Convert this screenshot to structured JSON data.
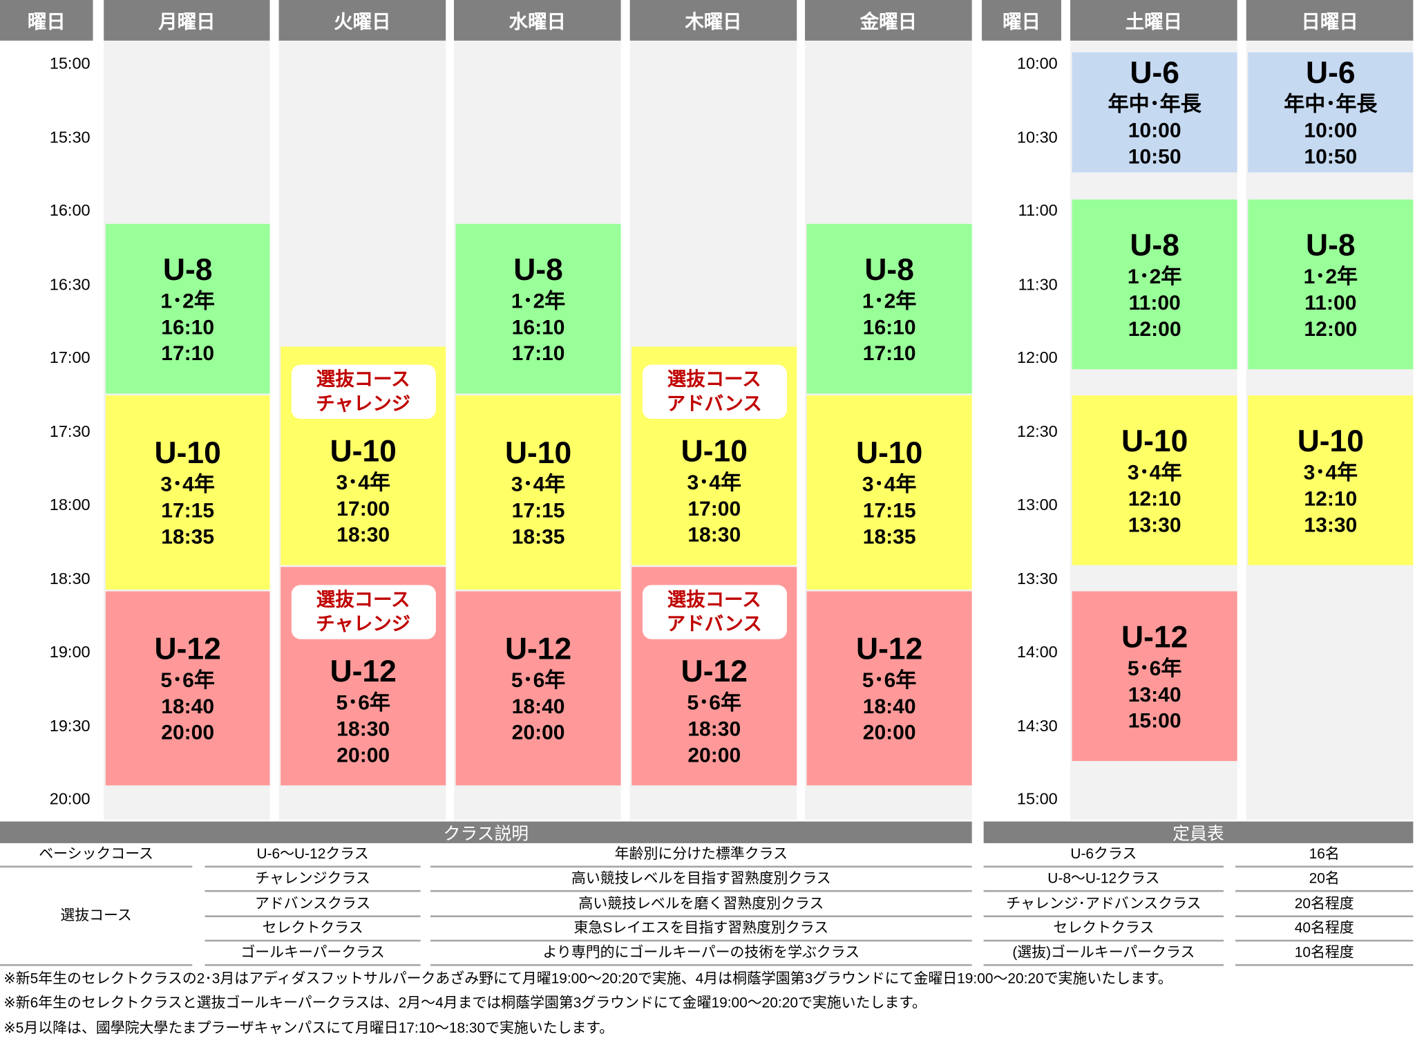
{
  "colors": {
    "header": "#808080",
    "column_bg": "#f2f2f2",
    "U-6": "#c5d9f1",
    "U-8": "#99ff99",
    "U-10": "#ffff66",
    "U-12": "#ff9999",
    "badge_text": "#c00000"
  },
  "headers": {
    "weekday_label": "曜日",
    "weekend_label": "曜日",
    "days": [
      "月曜日",
      "火曜日",
      "水曜日",
      "木曜日",
      "金曜日",
      "土曜日",
      "日曜日"
    ]
  },
  "weekday_times": [
    "15:00",
    "15:30",
    "16:00",
    "16:30",
    "17:00",
    "17:30",
    "18:00",
    "18:30",
    "19:00",
    "19:30",
    "20:00"
  ],
  "weekend_times": [
    "10:00",
    "10:30",
    "11:00",
    "11:30",
    "12:00",
    "12:30",
    "13:00",
    "13:30",
    "14:00",
    "14:30",
    "15:00"
  ],
  "schedule": [
    {
      "day": "月曜日",
      "blocks": [
        {
          "cls": "U-8",
          "grade": "1･2年",
          "start": "16:10",
          "end": "17:10"
        },
        {
          "cls": "U-10",
          "grade": "3･4年",
          "start": "17:15",
          "end": "18:35"
        },
        {
          "cls": "U-12",
          "grade": "5･6年",
          "start": "18:40",
          "end": "20:00"
        }
      ]
    },
    {
      "day": "火曜日",
      "blocks": [
        {
          "badge": [
            "選抜コース",
            "チャレンジ"
          ],
          "cls": "U-10",
          "grade": "3･4年",
          "start": "17:00",
          "end": "18:30"
        },
        {
          "badge": [
            "選抜コース",
            "チャレンジ"
          ],
          "cls": "U-12",
          "grade": "5･6年",
          "start": "18:30",
          "end": "20:00"
        }
      ]
    },
    {
      "day": "水曜日",
      "blocks": [
        {
          "cls": "U-8",
          "grade": "1･2年",
          "start": "16:10",
          "end": "17:10"
        },
        {
          "cls": "U-10",
          "grade": "3･4年",
          "start": "17:15",
          "end": "18:35"
        },
        {
          "cls": "U-12",
          "grade": "5･6年",
          "start": "18:40",
          "end": "20:00"
        }
      ]
    },
    {
      "day": "木曜日",
      "blocks": [
        {
          "badge": [
            "選抜コース",
            "アドバンス"
          ],
          "cls": "U-10",
          "grade": "3･4年",
          "start": "17:00",
          "end": "18:30"
        },
        {
          "badge": [
            "選抜コース",
            "アドバンス"
          ],
          "cls": "U-12",
          "grade": "5･6年",
          "start": "18:30",
          "end": "20:00"
        }
      ]
    },
    {
      "day": "金曜日",
      "blocks": [
        {
          "cls": "U-8",
          "grade": "1･2年",
          "start": "16:10",
          "end": "17:10"
        },
        {
          "cls": "U-10",
          "grade": "3･4年",
          "start": "17:15",
          "end": "18:35"
        },
        {
          "cls": "U-12",
          "grade": "5･6年",
          "start": "18:40",
          "end": "20:00"
        }
      ]
    },
    {
      "day": "土曜日",
      "blocks": [
        {
          "cls": "U-6",
          "grade": "年中･年長",
          "start": "10:00",
          "end": "10:50"
        },
        {
          "cls": "U-8",
          "grade": "1･2年",
          "start": "11:00",
          "end": "12:00"
        },
        {
          "cls": "U-10",
          "grade": "3･4年",
          "start": "12:10",
          "end": "13:30"
        },
        {
          "cls": "U-12",
          "grade": "5･6年",
          "start": "13:40",
          "end": "15:00"
        }
      ]
    },
    {
      "day": "日曜日",
      "blocks": [
        {
          "cls": "U-6",
          "grade": "年中･年長",
          "start": "10:00",
          "end": "10:50"
        },
        {
          "cls": "U-8",
          "grade": "1･2年",
          "start": "11:00",
          "end": "12:00"
        },
        {
          "cls": "U-10",
          "grade": "3･4年",
          "start": "12:10",
          "end": "13:30"
        }
      ]
    }
  ],
  "class_table": {
    "title": "クラス説明",
    "rows": [
      {
        "course": "ベーシックコース",
        "cls": "U-6～U-12クラス",
        "desc": "年齢別に分けた標準クラス"
      },
      {
        "course": "選抜コース",
        "cls": "チャレンジクラス",
        "desc": "高い競技レベルを目指す習熟度別クラス"
      },
      {
        "course": "",
        "cls": "アドバンスクラス",
        "desc": "高い競技レベルを磨く習熟度別クラス"
      },
      {
        "course": "",
        "cls": "セレクトクラス",
        "desc": "東急Sレイエスを目指す習熟度別クラス"
      },
      {
        "course": "",
        "cls": "ゴールキーパークラス",
        "desc": "より専門的にゴールキーパーの技術を学ぶクラス"
      }
    ]
  },
  "capacity_table": {
    "title": "定員表",
    "rows": [
      {
        "cls": "U-6クラス",
        "cap": "16名"
      },
      {
        "cls": "U-8～U-12クラス",
        "cap": "20名"
      },
      {
        "cls": "チャレンジ･アドバンスクラス",
        "cap": "20名程度"
      },
      {
        "cls": "セレクトクラス",
        "cap": "40名程度"
      },
      {
        "cls": "(選抜)ゴールキーパークラス",
        "cap": "10名程度"
      }
    ]
  },
  "notes": [
    "※新5年生のセレクトクラスの2･3月はアディダスフットサルパークあざみ野にて月曜19:00～20:20で実施、4月は桐蔭学園第3グラウンドにて金曜日19:00～20:20で実施いたします。",
    "※新6年生のセレクトクラスと選抜ゴールキーパークラスは、2月～4月までは桐蔭学園第3グラウンドにて金曜19:00～20:20で実施いたします。",
    "※5月以降は、國學院大學たまプラーザキャンパスにて月曜日17:10～18:30で実施いたします。"
  ]
}
